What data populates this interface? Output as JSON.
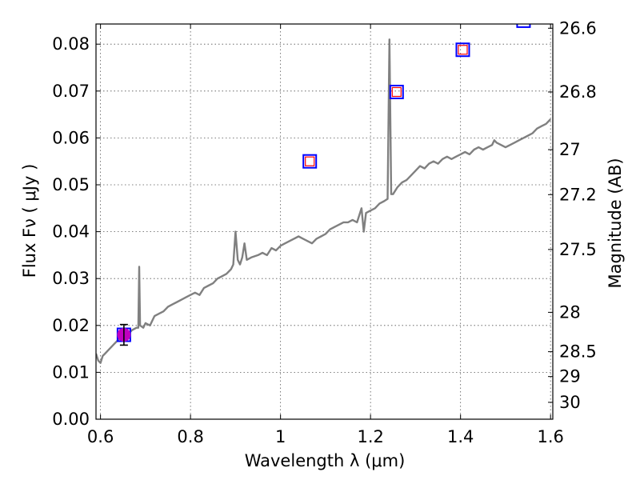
{
  "chart_data": {
    "type": "line",
    "xlabel": "Wavelength  λ (μm)",
    "ylabel": "Flux  Fν  ( μJy )",
    "y2label": "Magnitude (AB)",
    "xlim": [
      0.59,
      1.605
    ],
    "ylim": [
      0.0,
      0.0843
    ],
    "grid": true,
    "x_ticks": [
      0.6,
      0.8,
      1.0,
      1.2,
      1.4,
      1.6
    ],
    "x_tick_labels": [
      "0.6",
      "0.8",
      "1",
      "1.2",
      "1.4",
      "1.6"
    ],
    "y_ticks": [
      0.0,
      0.01,
      0.02,
      0.03,
      0.04,
      0.05,
      0.06,
      0.07,
      0.08
    ],
    "y_tick_labels": [
      "0.00",
      "0.01",
      "0.02",
      "0.03",
      "0.04",
      "0.05",
      "0.06",
      "0.07",
      "0.08"
    ],
    "y2_ticks": [
      {
        "label": "26.6",
        "flux": 0.0834
      },
      {
        "label": "26.8",
        "flux": 0.0698
      },
      {
        "label": "27",
        "flux": 0.0575
      },
      {
        "label": "27.2",
        "flux": 0.0479
      },
      {
        "label": "27.5",
        "flux": 0.0362
      },
      {
        "label": "28",
        "flux": 0.0228
      },
      {
        "label": "28.5",
        "flux": 0.0144
      },
      {
        "label": "29",
        "flux": 0.0091
      },
      {
        "label": "30",
        "flux": 0.0036
      }
    ],
    "series": [
      {
        "kind": "line",
        "color": "#808080",
        "points": [
          [
            0.59,
            0.014
          ],
          [
            0.595,
            0.0125
          ],
          [
            0.6,
            0.012
          ],
          [
            0.605,
            0.0135
          ],
          [
            0.61,
            0.014
          ],
          [
            0.62,
            0.015
          ],
          [
            0.63,
            0.016
          ],
          [
            0.64,
            0.017
          ],
          [
            0.65,
            0.0175
          ],
          [
            0.66,
            0.018
          ],
          [
            0.67,
            0.019
          ],
          [
            0.68,
            0.0195
          ],
          [
            0.684,
            0.0195
          ],
          [
            0.686,
            0.0325
          ],
          [
            0.688,
            0.02
          ],
          [
            0.695,
            0.0195
          ],
          [
            0.7,
            0.0205
          ],
          [
            0.71,
            0.02
          ],
          [
            0.72,
            0.022
          ],
          [
            0.73,
            0.0225
          ],
          [
            0.74,
            0.023
          ],
          [
            0.75,
            0.024
          ],
          [
            0.76,
            0.0245
          ],
          [
            0.77,
            0.025
          ],
          [
            0.78,
            0.0255
          ],
          [
            0.79,
            0.026
          ],
          [
            0.8,
            0.0265
          ],
          [
            0.81,
            0.027
          ],
          [
            0.82,
            0.0265
          ],
          [
            0.83,
            0.028
          ],
          [
            0.84,
            0.0285
          ],
          [
            0.85,
            0.029
          ],
          [
            0.86,
            0.03
          ],
          [
            0.87,
            0.0305
          ],
          [
            0.88,
            0.031
          ],
          [
            0.89,
            0.032
          ],
          [
            0.895,
            0.033
          ],
          [
            0.9,
            0.04
          ],
          [
            0.905,
            0.034
          ],
          [
            0.91,
            0.033
          ],
          [
            0.915,
            0.0345
          ],
          [
            0.92,
            0.0375
          ],
          [
            0.925,
            0.034
          ],
          [
            0.935,
            0.0345
          ],
          [
            0.95,
            0.035
          ],
          [
            0.96,
            0.0355
          ],
          [
            0.97,
            0.035
          ],
          [
            0.98,
            0.0365
          ],
          [
            0.99,
            0.036
          ],
          [
            1.0,
            0.037
          ],
          [
            1.01,
            0.0375
          ],
          [
            1.02,
            0.038
          ],
          [
            1.03,
            0.0385
          ],
          [
            1.04,
            0.039
          ],
          [
            1.05,
            0.0385
          ],
          [
            1.06,
            0.038
          ],
          [
            1.07,
            0.0375
          ],
          [
            1.08,
            0.0385
          ],
          [
            1.09,
            0.039
          ],
          [
            1.1,
            0.0395
          ],
          [
            1.11,
            0.0405
          ],
          [
            1.12,
            0.041
          ],
          [
            1.13,
            0.0415
          ],
          [
            1.14,
            0.042
          ],
          [
            1.15,
            0.042
          ],
          [
            1.16,
            0.0425
          ],
          [
            1.17,
            0.042
          ],
          [
            1.18,
            0.045
          ],
          [
            1.185,
            0.04
          ],
          [
            1.19,
            0.044
          ],
          [
            1.2,
            0.0445
          ],
          [
            1.21,
            0.045
          ],
          [
            1.22,
            0.046
          ],
          [
            1.23,
            0.0465
          ],
          [
            1.238,
            0.047
          ],
          [
            1.242,
            0.081
          ],
          [
            1.246,
            0.048
          ],
          [
            1.25,
            0.048
          ],
          [
            1.26,
            0.0495
          ],
          [
            1.27,
            0.0505
          ],
          [
            1.28,
            0.051
          ],
          [
            1.29,
            0.052
          ],
          [
            1.3,
            0.053
          ],
          [
            1.31,
            0.054
          ],
          [
            1.32,
            0.0535
          ],
          [
            1.33,
            0.0545
          ],
          [
            1.34,
            0.055
          ],
          [
            1.35,
            0.0545
          ],
          [
            1.36,
            0.0555
          ],
          [
            1.37,
            0.056
          ],
          [
            1.38,
            0.0555
          ],
          [
            1.39,
            0.056
          ],
          [
            1.4,
            0.0565
          ],
          [
            1.41,
            0.057
          ],
          [
            1.42,
            0.0565
          ],
          [
            1.43,
            0.0575
          ],
          [
            1.44,
            0.058
          ],
          [
            1.45,
            0.0575
          ],
          [
            1.46,
            0.058
          ],
          [
            1.47,
            0.0585
          ],
          [
            1.475,
            0.0595
          ],
          [
            1.48,
            0.059
          ],
          [
            1.49,
            0.0585
          ],
          [
            1.5,
            0.058
          ],
          [
            1.51,
            0.0585
          ],
          [
            1.52,
            0.059
          ],
          [
            1.53,
            0.0595
          ],
          [
            1.54,
            0.06
          ],
          [
            1.55,
            0.0605
          ],
          [
            1.56,
            0.061
          ],
          [
            1.57,
            0.062
          ],
          [
            1.58,
            0.0625
          ],
          [
            1.59,
            0.063
          ],
          [
            1.6,
            0.064
          ]
        ]
      },
      {
        "kind": "squares-blue",
        "color": "#0000ff",
        "points": [
          [
            0.652,
            0.018
          ],
          [
            1.065,
            0.055
          ],
          [
            1.258,
            0.0698
          ],
          [
            1.405,
            0.0788
          ],
          [
            1.54,
            0.085
          ]
        ]
      },
      {
        "kind": "squares-red",
        "color": "#ff0000",
        "points": [
          [
            1.065,
            0.055
          ],
          [
            1.258,
            0.0698
          ],
          [
            1.405,
            0.0788
          ]
        ]
      },
      {
        "kind": "errorbar-point",
        "marker_color": "#bf00bf",
        "errorbar_color": "#000000",
        "points": [
          {
            "x": 0.652,
            "y": 0.018,
            "yerr": 0.0022
          }
        ]
      }
    ]
  }
}
